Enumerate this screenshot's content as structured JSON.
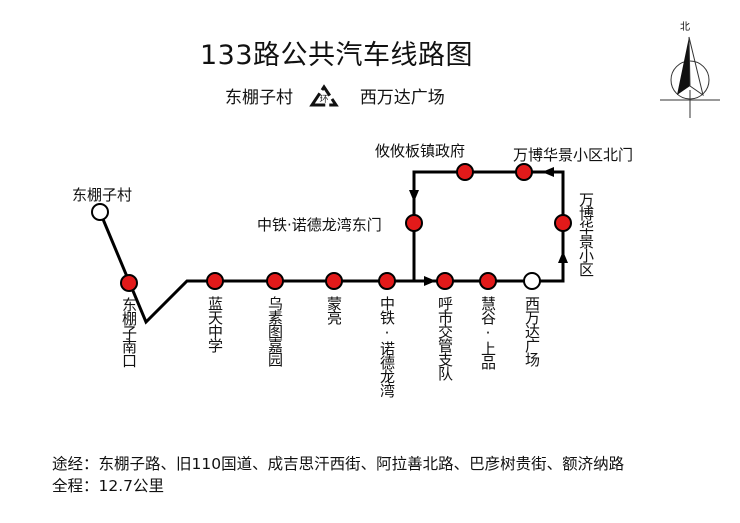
{
  "title": "133路公共汽车线路图",
  "subtitle": {
    "from": "东棚子村",
    "loop_symbol": "环",
    "to": "西万达广场"
  },
  "compass": {
    "label": "北"
  },
  "colors": {
    "station_fill": "#e21a1a",
    "terminal_fill": "#ffffff",
    "line": "#000000"
  },
  "stations": [
    {
      "name": "东棚子村",
      "type": "terminal"
    },
    {
      "name": "东棚子南口",
      "type": "stop"
    },
    {
      "name": "蓝天中学",
      "type": "stop"
    },
    {
      "name": "乌素图嘉园",
      "type": "stop"
    },
    {
      "name": "蒙亮",
      "type": "stop"
    },
    {
      "name": "中铁·诺德龙湾",
      "type": "stop"
    },
    {
      "name": "呼市交管支队",
      "type": "stop"
    },
    {
      "name": "慧谷·上品",
      "type": "stop"
    },
    {
      "name": "西万达广场",
      "type": "terminal"
    },
    {
      "name": "万博华景小区",
      "type": "stop"
    },
    {
      "name": "万博华景小区北门",
      "type": "stop"
    },
    {
      "name": "攸攸板镇政府",
      "type": "stop"
    },
    {
      "name": "中铁·诺德龙湾东门",
      "type": "stop"
    }
  ],
  "footer": {
    "via": "途经：东棚子路、旧110国道、成吉思汗西街、阿拉善北路、巴彦树贵街、额济纳路",
    "length": "全程：12.7公里"
  }
}
